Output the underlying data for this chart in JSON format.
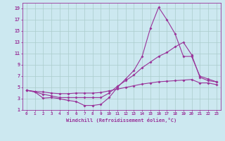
{
  "xlabel": "Windchill (Refroidissement éolien,°C)",
  "background_color": "#cce8f0",
  "line_color": "#993399",
  "grid_color": "#aacccc",
  "xlim": [
    -0.5,
    23.5
  ],
  "ylim": [
    1,
    20
  ],
  "xticks": [
    0,
    1,
    2,
    3,
    4,
    5,
    6,
    7,
    8,
    9,
    10,
    11,
    12,
    13,
    14,
    15,
    16,
    17,
    18,
    19,
    20,
    21,
    22,
    23
  ],
  "yticks": [
    1,
    3,
    5,
    7,
    9,
    11,
    13,
    15,
    17,
    19
  ],
  "line1_x": [
    0,
    1,
    2,
    3,
    4,
    5,
    6,
    7,
    8,
    9,
    10,
    11,
    12,
    13,
    14,
    15,
    16,
    17,
    18,
    19,
    20,
    21,
    22,
    23
  ],
  "line1_y": [
    4.5,
    4.2,
    3.1,
    3.2,
    3.0,
    2.7,
    2.5,
    1.8,
    1.8,
    2.0,
    3.2,
    5.0,
    6.5,
    8.0,
    10.5,
    15.5,
    19.2,
    17.0,
    14.5,
    10.5,
    10.5,
    7.0,
    6.5,
    6.0
  ],
  "line2_x": [
    0,
    1,
    2,
    3,
    4,
    5,
    6,
    7,
    8,
    9,
    10,
    11,
    12,
    13,
    14,
    15,
    16,
    17,
    18,
    19,
    20,
    21,
    22,
    23
  ],
  "line2_y": [
    4.5,
    4.2,
    3.8,
    3.5,
    3.2,
    3.2,
    3.2,
    3.2,
    3.2,
    3.2,
    4.0,
    5.2,
    6.2,
    7.2,
    8.5,
    9.5,
    10.5,
    11.2,
    12.2,
    13.0,
    10.8,
    6.8,
    6.2,
    6.0
  ],
  "line3_x": [
    0,
    1,
    2,
    3,
    4,
    5,
    6,
    7,
    8,
    9,
    10,
    11,
    12,
    13,
    14,
    15,
    16,
    17,
    18,
    19,
    20,
    21,
    22,
    23
  ],
  "line3_y": [
    4.5,
    4.3,
    4.2,
    4.0,
    3.9,
    3.9,
    4.0,
    4.0,
    4.0,
    4.1,
    4.4,
    4.7,
    5.0,
    5.3,
    5.6,
    5.8,
    6.0,
    6.1,
    6.2,
    6.3,
    6.4,
    5.8,
    5.8,
    5.5
  ]
}
